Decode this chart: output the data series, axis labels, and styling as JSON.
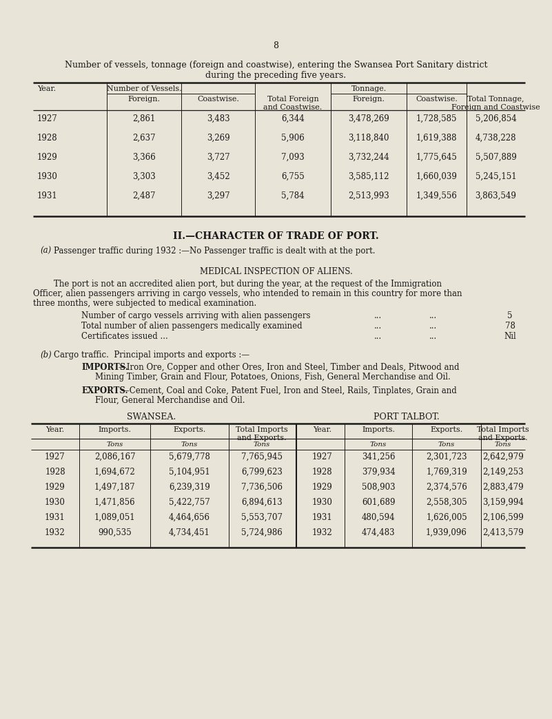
{
  "page_number": "8",
  "bg_color": "#e8e4d8",
  "text_color": "#1a1a1a",
  "title_line1": "Number of vessels, tonnage (foreign and coastwise), entering the Swansea Port Sanitary district",
  "title_line2": "during the preceding five years.",
  "table1_data": [
    [
      "1927",
      "2,861",
      "3,483",
      "6,344",
      "3,478,269",
      "1,728,585",
      "5,206,854"
    ],
    [
      "1928",
      "2,637",
      "3,269",
      "5,906",
      "3,118,840",
      "1,619,388",
      "4,738,228"
    ],
    [
      "1929",
      "3,366",
      "3,727",
      "7,093",
      "3,732,244",
      "1,775,645",
      "5,507,889"
    ],
    [
      "1930",
      "3,303",
      "3,452",
      "6,755",
      "3,585,112",
      "1,660,039",
      "5,245,151"
    ],
    [
      "1931",
      "2,487",
      "3,297",
      "5,784",
      "2,513,993",
      "1,349,556",
      "3,863,549"
    ]
  ],
  "section2_title_plain": "II.—",
  "section2_title_bold": "CHARACTER OF TRADE OF PORT.",
  "para_a_label": "(a)",
  "para_a_text": "Passenger traffic during 1932 :—No Passenger traffic is dealt with at the port.",
  "medical_title": "MEDICAL INSPECTION OF ALIENS.",
  "medical_para_line1": "        The port is not an accredited alien port, but during the year, at the request of the Immigration",
  "medical_para_line2": "Officer, alien passengers arriving in cargo vessels, who intended to remain in this country for more than",
  "medical_para_line3": "three months, were subjected to medical examination.",
  "para_b_label": "(b)",
  "para_b_text": "Cargo traffic.  Principal imports and exports :—",
  "imports_bold": "IMPORTS.",
  "imports_rest": "—Iron Ore, Copper and other Ores, Iron and Steel, Timber and Deals, Pitwood and",
  "imports_line2": "Mining Timber, Grain and Flour, Potatoes, Onions, Fish, General Merchandise and Oil.",
  "exports_bold": "EXPORTS.",
  "exports_rest": "—Cement, Coal and Coke, Patent Fuel, Iron and Steel, Rails, Tinplates, Grain and",
  "exports_line2": "Flour, General Merchandise and Oil.",
  "swansea_title": "SWANSEA.",
  "talbot_title": "PORT TALBOT.",
  "table2_swansea": [
    [
      "1927",
      "2,086,167",
      "5,679,778",
      "7,765,945"
    ],
    [
      "1928",
      "1,694,672",
      "5,104,951",
      "6,799,623"
    ],
    [
      "1929",
      "1,497,187",
      "6,239,319",
      "7,736,506"
    ],
    [
      "1930",
      "1,471,856",
      "5,422,757",
      "6,894,613"
    ],
    [
      "1931",
      "1,089,051",
      "4,464,656",
      "5,553,707"
    ],
    [
      "1932",
      "990,535",
      "4,734,451",
      "5,724,986"
    ]
  ],
  "table2_talbot": [
    [
      "1927",
      "341,256",
      "2,301,723",
      "2,642,979"
    ],
    [
      "1928",
      "379,934",
      "1,769,319",
      "2,149,253"
    ],
    [
      "1929",
      "508,903",
      "2,374,576",
      "2,883,479"
    ],
    [
      "1930",
      "601,689",
      "2,558,305",
      "3,159,994"
    ],
    [
      "1931",
      "480,594",
      "1,626,005",
      "2,106,599"
    ],
    [
      "1932",
      "474,483",
      "1,939,096",
      "2,413,579"
    ]
  ]
}
